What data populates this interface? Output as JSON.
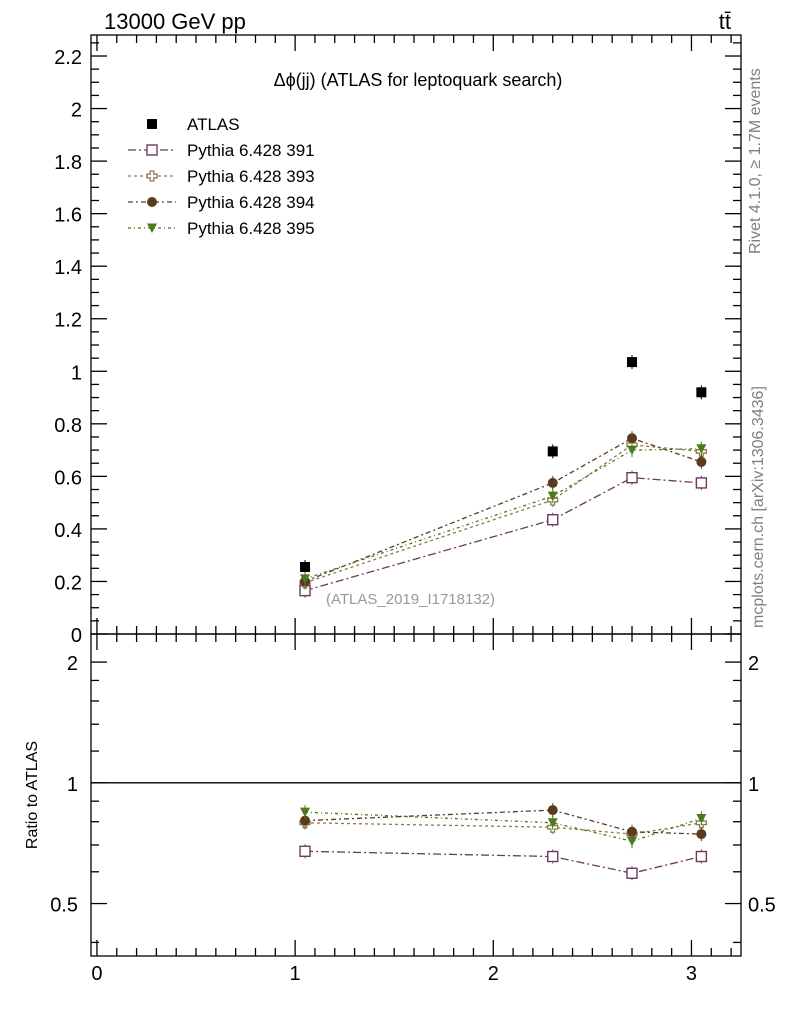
{
  "header": {
    "beam_label": "13000 GeV pp",
    "process_label": "tt̄"
  },
  "side_labels": {
    "rivet": "Rivet 4.1.0, ≥ 1.7M events",
    "mcplots": "mcplots.cern.ch [arXiv:1306.3436]"
  },
  "colors": {
    "data": "#000000",
    "py391": "#6e3a5a",
    "py393": "#8c7a4a",
    "py394": "#5c3a1e",
    "py395": "#4a7a1a",
    "analysis_label": "#999999",
    "side_label": "#7f7f7f"
  },
  "chart_data": [
    {
      "type": "scatter",
      "panel": "main",
      "title": "Δϕ(jj) (ATLAS for leptoquark search)",
      "analysis_id": "(ATLAS_2019_I1718132)",
      "xlabel": "",
      "ylabel": "",
      "xlim": [
        -0.03,
        3.25
      ],
      "ylim": [
        0,
        2.28
      ],
      "y_ticks": [
        0,
        0.2,
        0.4,
        0.6,
        0.8,
        1,
        1.2,
        1.4,
        1.6,
        1.8,
        2,
        2.2
      ],
      "y_tick_labels": [
        "0",
        "0.2",
        "0.4",
        "0.6",
        "0.8",
        "1",
        "1.2",
        "1.4",
        "1.6",
        "1.8",
        "2",
        "2.2"
      ],
      "legend_position": "top-left",
      "series": [
        {
          "name": "ATLAS",
          "key": "data",
          "marker": "square-filled",
          "x": [
            1.05,
            2.3,
            2.7,
            3.05
          ],
          "y": [
            0.255,
            0.695,
            1.035,
            0.92
          ]
        },
        {
          "name": "Pythia 6.428 391",
          "key": "py391",
          "marker": "square-open",
          "x": [
            1.05,
            2.3,
            2.7,
            3.05
          ],
          "y": [
            0.165,
            0.435,
            0.595,
            0.575
          ]
        },
        {
          "name": "Pythia 6.428 393",
          "key": "py393",
          "marker": "cross-open",
          "x": [
            1.05,
            2.3,
            2.7,
            3.05
          ],
          "y": [
            0.195,
            0.51,
            0.72,
            0.695
          ]
        },
        {
          "name": "Pythia 6.428 394",
          "key": "py394",
          "marker": "circle-filled",
          "x": [
            1.05,
            2.3,
            2.7,
            3.05
          ],
          "y": [
            0.2,
            0.575,
            0.745,
            0.655
          ]
        },
        {
          "name": "Pythia 6.428 395",
          "key": "py395",
          "marker": "triangle-down-filled",
          "x": [
            1.05,
            2.3,
            2.7,
            3.05
          ],
          "y": [
            0.21,
            0.525,
            0.7,
            0.705
          ]
        }
      ]
    },
    {
      "type": "scatter",
      "panel": "ratio",
      "ylabel": "Ratio to ATLAS",
      "xlim": [
        -0.03,
        3.25
      ],
      "ylim": [
        0.37,
        2.35
      ],
      "log_y": true,
      "reference_line": 1,
      "y_ticks": [
        0.5,
        1,
        2
      ],
      "y_tick_labels": [
        "0.5",
        "1",
        "2"
      ],
      "x_ticks": [
        0,
        1,
        2,
        3
      ],
      "x_tick_labels": [
        "0",
        "1",
        "2",
        "3"
      ],
      "series": [
        {
          "name": "Pythia 6.428 391",
          "key": "py391",
          "marker": "square-open",
          "x": [
            1.05,
            2.3,
            2.7,
            3.05
          ],
          "y": [
            0.675,
            0.655,
            0.595,
            0.655
          ]
        },
        {
          "name": "Pythia 6.428 393",
          "key": "py393",
          "marker": "cross-open",
          "x": [
            1.05,
            2.3,
            2.7,
            3.05
          ],
          "y": [
            0.795,
            0.775,
            0.745,
            0.795
          ]
        },
        {
          "name": "Pythia 6.428 394",
          "key": "py394",
          "marker": "circle-filled",
          "x": [
            1.05,
            2.3,
            2.7,
            3.05
          ],
          "y": [
            0.805,
            0.855,
            0.755,
            0.745
          ]
        },
        {
          "name": "Pythia 6.428 395",
          "key": "py395",
          "marker": "triangle-down-filled",
          "x": [
            1.05,
            2.3,
            2.7,
            3.05
          ],
          "y": [
            0.845,
            0.795,
            0.715,
            0.815
          ]
        }
      ]
    }
  ]
}
